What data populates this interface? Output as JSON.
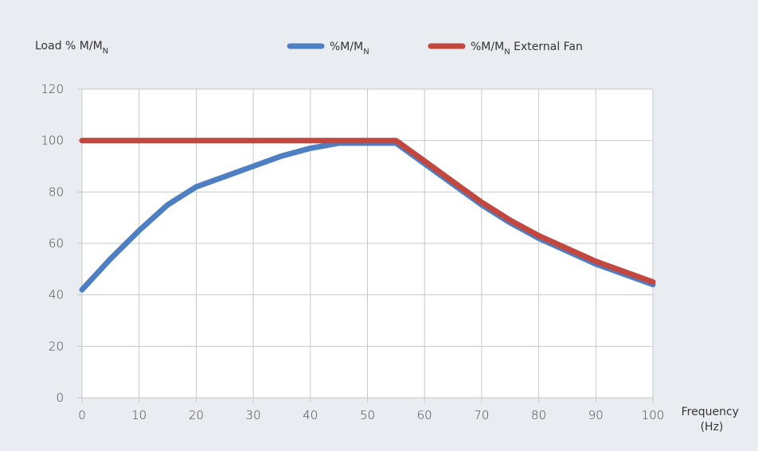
{
  "colors": {
    "background": "#e9ecf1",
    "plot_background": "#ffffff",
    "grid": "#c8c8c8",
    "series_1": "#4f7fc3",
    "series_2": "#c2473f"
  },
  "chart_data": {
    "type": "line",
    "ylabel_main": "Load % M/M",
    "ylabel_sub": "N",
    "xlabel_line1": "Frequency",
    "xlabel_line2": "(Hz)",
    "xlim": [
      0,
      100
    ],
    "ylim": [
      0,
      120
    ],
    "xticks": [
      0,
      10,
      20,
      30,
      40,
      50,
      60,
      70,
      80,
      90,
      100
    ],
    "yticks": [
      0,
      20,
      40,
      60,
      80,
      100,
      120
    ],
    "grid": true,
    "legend_position": "top-center",
    "series": [
      {
        "name_main": "%M/M",
        "name_sub": "N",
        "name_suffix": "",
        "color": "#4f7fc3",
        "x": [
          0,
          5,
          10,
          15,
          20,
          25,
          30,
          35,
          40,
          45,
          50,
          55,
          60,
          65,
          70,
          75,
          80,
          85,
          90,
          95,
          100
        ],
        "y": [
          42,
          54,
          65,
          75,
          82,
          86,
          90,
          94,
          97,
          99,
          99,
          99,
          91,
          83,
          75,
          68,
          62,
          57,
          52,
          48,
          44
        ]
      },
      {
        "name_main": "%M/M",
        "name_sub": "N",
        "name_suffix": " External Fan",
        "color": "#c2473f",
        "x": [
          0,
          5,
          10,
          15,
          20,
          25,
          30,
          35,
          40,
          45,
          50,
          55,
          60,
          65,
          70,
          75,
          80,
          85,
          90,
          95,
          100
        ],
        "y": [
          100,
          100,
          100,
          100,
          100,
          100,
          100,
          100,
          100,
          100,
          100,
          100,
          92,
          84,
          76,
          69,
          63,
          58,
          53,
          49,
          45
        ]
      }
    ]
  }
}
